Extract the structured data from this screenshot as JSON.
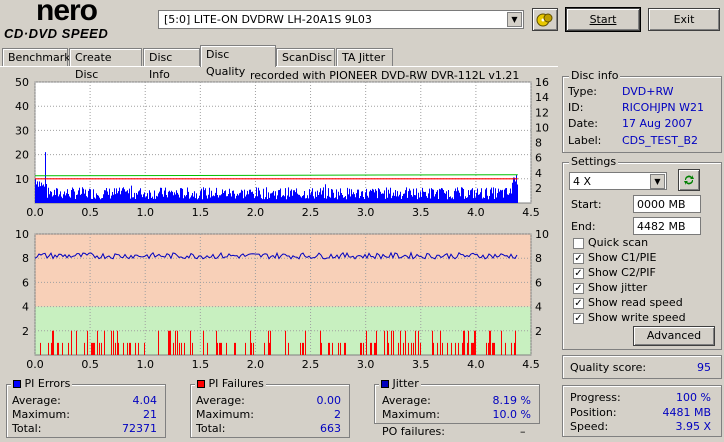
{
  "app": {
    "logo_main": "nero",
    "logo_sub": "CD·DVD SPEED"
  },
  "toolbar": {
    "drive": "[5:0]  LITE-ON DVDRW LH-20A1S 9L03",
    "start_label": "Start",
    "exit_label": "Exit"
  },
  "tabs": [
    {
      "label": "Benchmark"
    },
    {
      "label": "Create Disc"
    },
    {
      "label": "Disc Info"
    },
    {
      "label": "Disc Quality"
    },
    {
      "label": "ScanDisc"
    },
    {
      "label": "TA Jitter"
    }
  ],
  "recorded_with": "recorded with PIONEER DVD-RW  DVR-112L v1.21",
  "chart_data": [
    {
      "type": "bar",
      "title": "",
      "x_ticks": [
        "0.0",
        "0.5",
        "1.0",
        "1.5",
        "2.0",
        "2.5",
        "3.0",
        "3.5",
        "4.0",
        "4.5"
      ],
      "xlim": [
        0,
        4.5
      ],
      "ylim": [
        0,
        50
      ],
      "y_ticks_left": [
        "50",
        "40",
        "30",
        "20",
        "10"
      ],
      "y_ticks_right": [
        "16",
        "14",
        "12",
        "10",
        "8",
        "6",
        "4",
        "2"
      ],
      "ylim_right": [
        0,
        16
      ],
      "series": [
        {
          "color": "#0000ff",
          "data_range": [
            0,
            4.38
          ],
          "average": 4.04,
          "maximum": 21
        },
        {
          "color": "#ff0000",
          "type": "line",
          "value_right_axis": 3.2
        },
        {
          "color": "#00c000",
          "type": "line",
          "value_right_axis": 3.6
        }
      ]
    },
    {
      "type": "bar",
      "title": "",
      "x_ticks": [
        "0.0",
        "0.5",
        "1.0",
        "1.5",
        "2.0",
        "2.5",
        "3.0",
        "3.5",
        "4.0",
        "4.5"
      ],
      "xlim": [
        0,
        4.5
      ],
      "ylim": [
        0,
        10
      ],
      "y_ticks_left": [
        "10",
        "8",
        "6",
        "4",
        "2"
      ],
      "y_ticks_right": [
        "10",
        "8",
        "6",
        "4",
        "2"
      ],
      "series": [
        {
          "color": "#ff0000",
          "maximum": 2,
          "total": 663
        },
        {
          "color": "#0000c0",
          "type": "line",
          "value": 8.2
        }
      ]
    }
  ],
  "disc_info": {
    "title": "Disc info",
    "type_label": "Type:",
    "type_value": "DVD+RW",
    "id_label": "ID:",
    "id_value": "RICOHJPN W21",
    "date_label": "Date:",
    "date_value": "17 Aug 2007",
    "label_label": "Label:",
    "label_value": "CDS_TEST_B2"
  },
  "settings": {
    "title": "Settings",
    "speed": "4 X",
    "start_label": "Start:",
    "start_value": "0000 MB",
    "end_label": "End:",
    "end_value": "4482 MB",
    "options": [
      {
        "label": "Quick scan",
        "checked": false
      },
      {
        "label": "Show C1/PIE",
        "checked": true
      },
      {
        "label": "Show C2/PIF",
        "checked": true
      },
      {
        "label": "Show jitter",
        "checked": true
      },
      {
        "label": "Show read speed",
        "checked": true
      },
      {
        "label": "Show write speed",
        "checked": true
      }
    ],
    "advanced_label": "Advanced"
  },
  "quality": {
    "label": "Quality score:",
    "value": "95"
  },
  "pi_errors": {
    "title": "PI Errors",
    "avg_label": "Average:",
    "avg": "4.04",
    "max_label": "Maximum:",
    "max": "21",
    "total_label": "Total:",
    "total": "72371",
    "color": "#0000ff"
  },
  "pi_failures": {
    "title": "PI Failures",
    "avg_label": "Average:",
    "avg": "0.00",
    "max_label": "Maximum:",
    "max": "2",
    "total_label": "Total:",
    "total": "663",
    "color": "#ff0000"
  },
  "jitter": {
    "title": "Jitter",
    "avg_label": "Average:",
    "avg": "8.19 %",
    "max_label": "Maximum:",
    "max": "10.0 %",
    "po_label": "PO failures:",
    "po": "–",
    "color": "#0000c0"
  },
  "progress": {
    "progress_label": "Progress:",
    "progress": "100 %",
    "position_label": "Position:",
    "position": "4481 MB",
    "speed_label": "Speed:",
    "speed": "3.95 X"
  }
}
